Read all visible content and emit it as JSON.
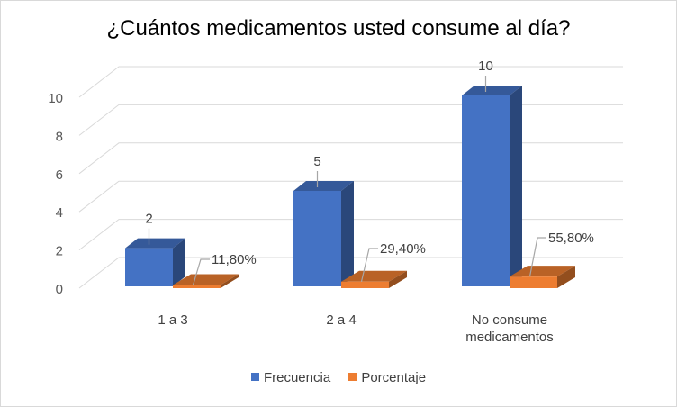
{
  "chart_data": {
    "type": "bar",
    "title": "¿Cuántos medicamentos usted consume al día?",
    "categories": [
      "1 a 3",
      "2 a 4",
      "No consume medicamentos"
    ],
    "series": [
      {
        "name": "Frecuencia",
        "values": [
          2,
          5,
          10
        ],
        "labels": [
          "2",
          "5",
          "10"
        ],
        "color": "#4472C4"
      },
      {
        "name": "Porcentaje",
        "values": [
          0.118,
          0.294,
          0.558
        ],
        "labels": [
          "11,80%",
          "29,40%",
          "55,80%"
        ],
        "color": "#ED7D31"
      }
    ],
    "y_ticks": [
      "0",
      "2",
      "4",
      "6",
      "8",
      "10"
    ],
    "ylim": [
      0,
      10
    ],
    "grid": true,
    "legend_position": "bottom",
    "style": "3d-clustered-column"
  }
}
